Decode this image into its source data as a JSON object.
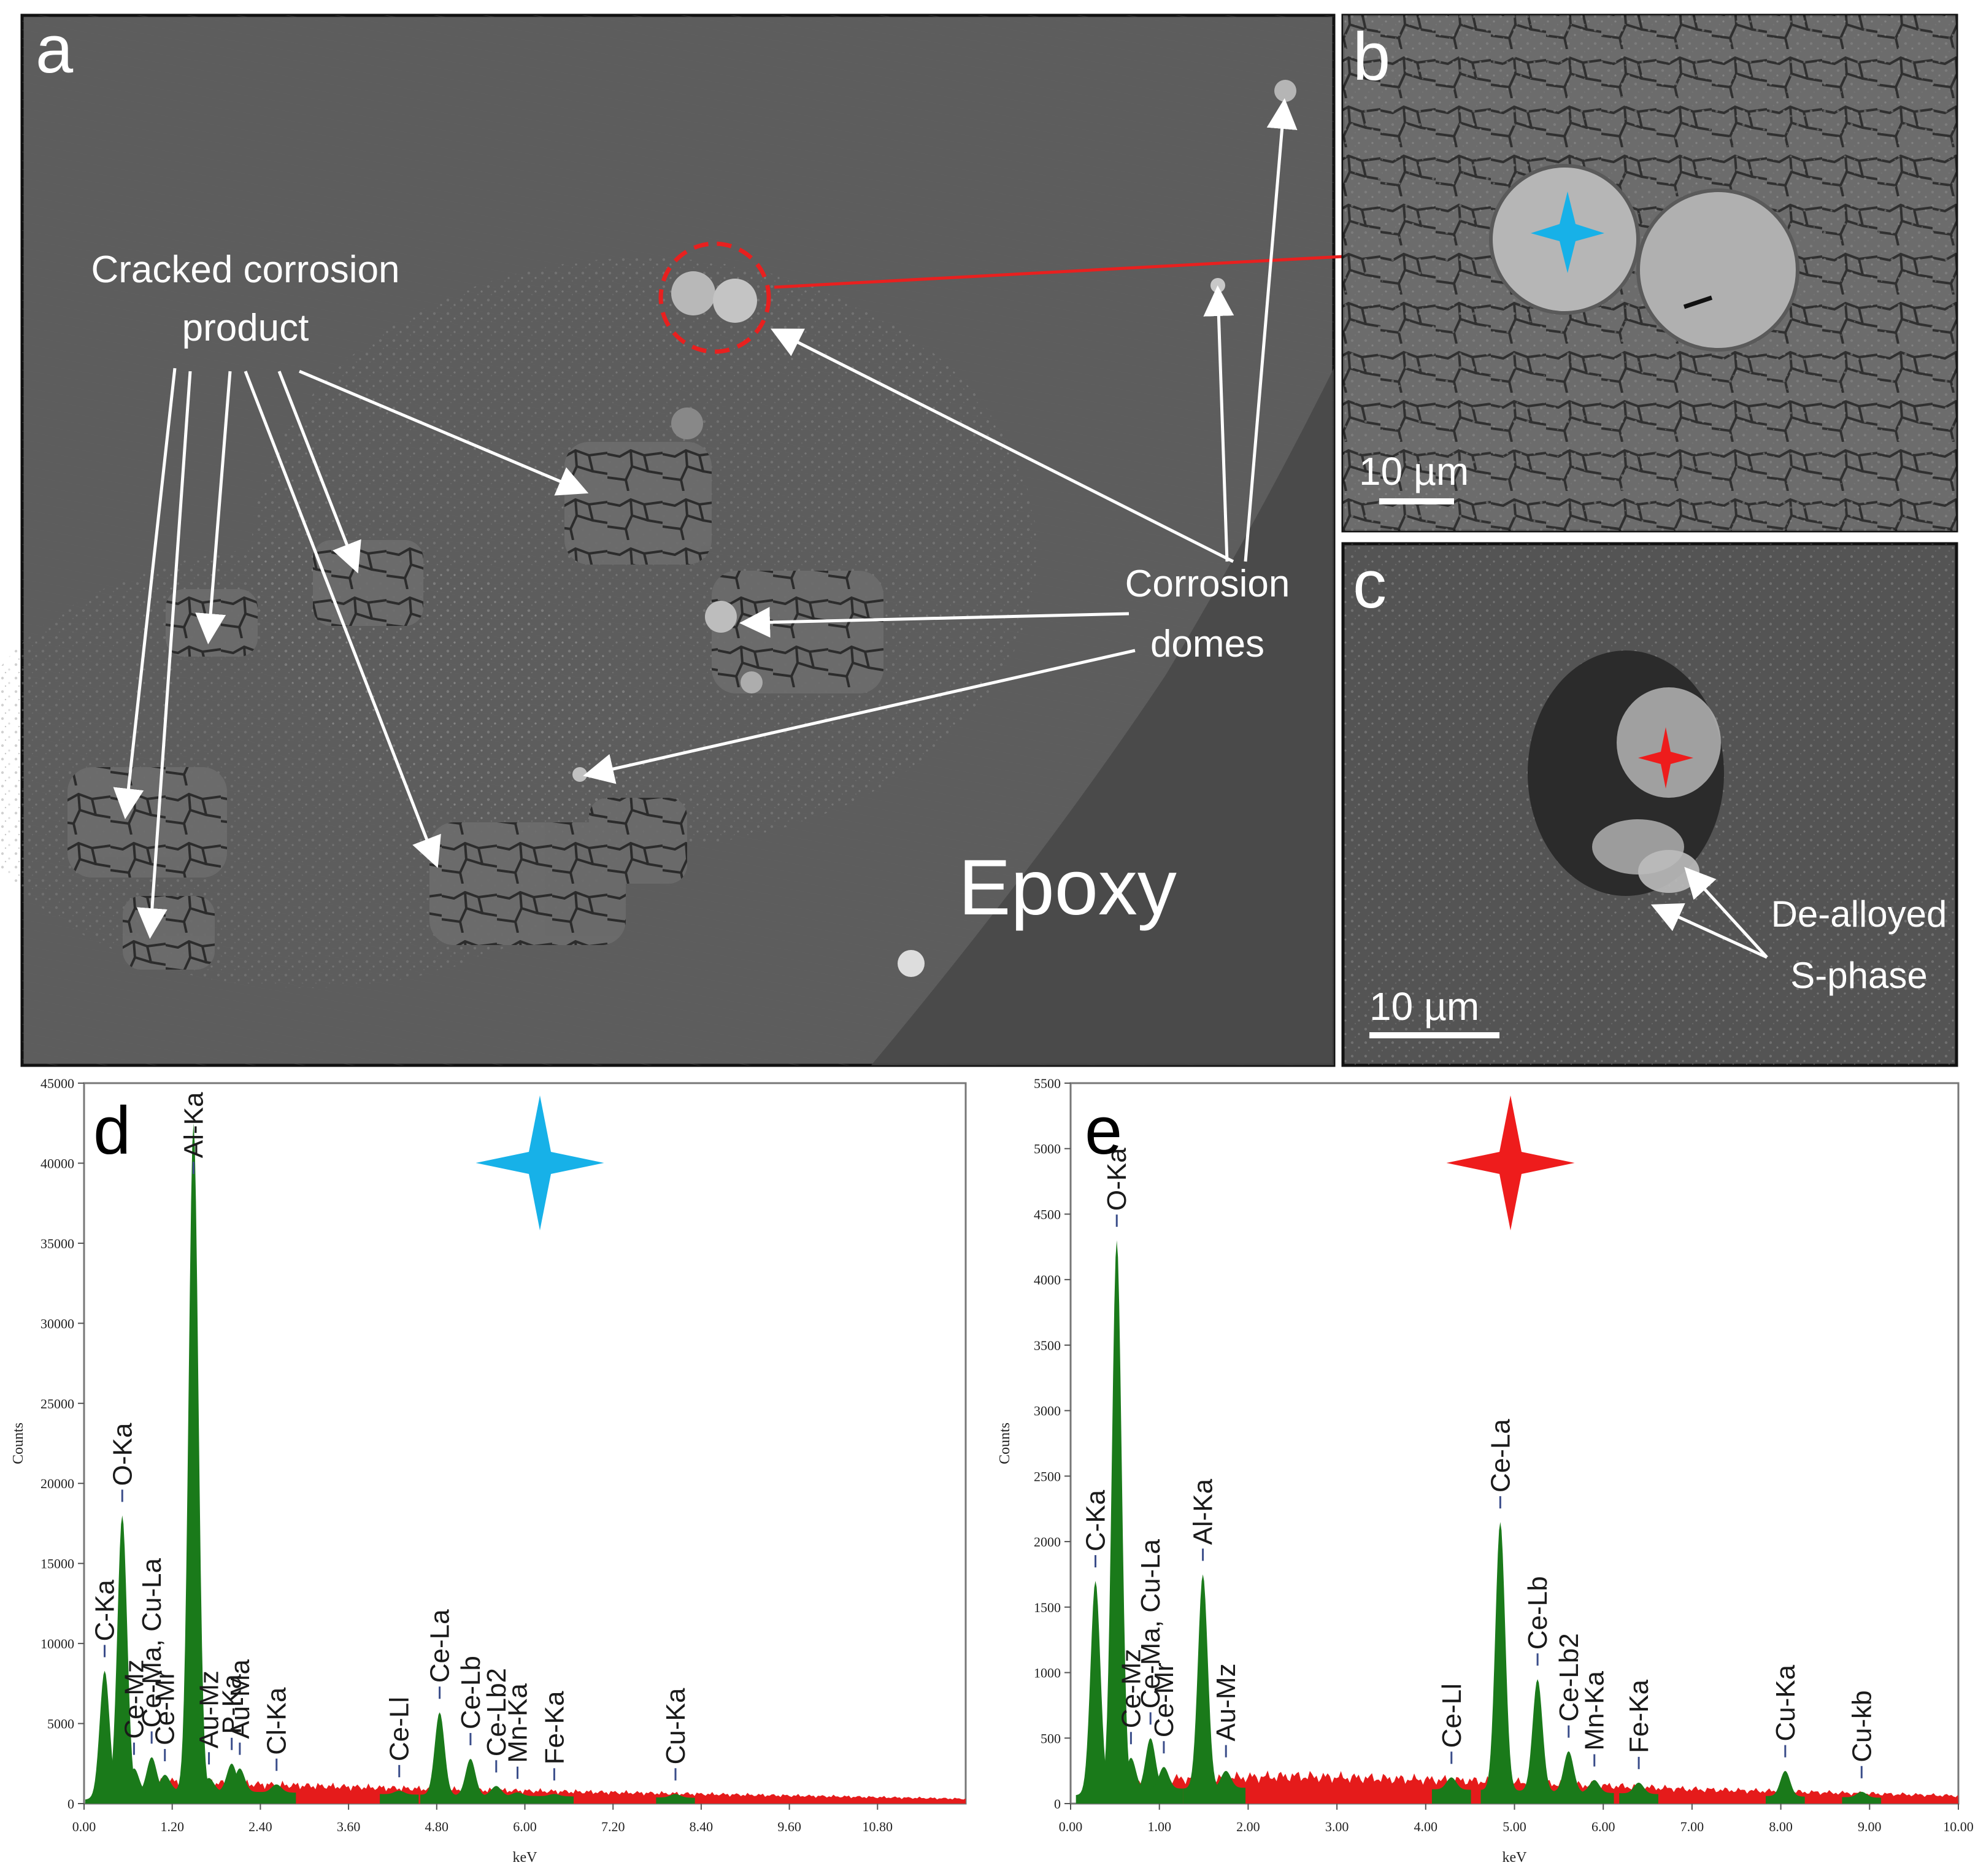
{
  "panels": {
    "a": {
      "letter": "a",
      "label_cracked": [
        "Cracked corrosion",
        "product"
      ],
      "label_domes": [
        "Corrosion",
        "domes"
      ],
      "label_epoxy": "Epoxy"
    },
    "b": {
      "letter": "b",
      "scalebar": "10 µm"
    },
    "c": {
      "letter": "c",
      "scalebar": "10 µm",
      "label_dealloyed": [
        "De-alloyed",
        "S-phase"
      ]
    }
  },
  "colors": {
    "spectrum_fill": "#1a7a1a",
    "background_fill": "#e51b1b",
    "star_blue": "#17b1e8",
    "star_red": "#ee1c1c",
    "circle_red": "#e8201f",
    "arrow_white": "#ffffff"
  },
  "chart_data": [
    {
      "panel": "d",
      "type": "area",
      "marker_star_color": "blue",
      "xlabel": "keV",
      "ylabel": "Counts",
      "xlim": [
        0,
        12
      ],
      "ylim": [
        0,
        45000
      ],
      "xticks": [
        "0.00",
        "1.20",
        "2.40",
        "3.60",
        "4.80",
        "6.00",
        "7.20",
        "8.40",
        "9.60",
        "10.80"
      ],
      "yticks": [
        "0",
        "5000",
        "10000",
        "15000",
        "20000",
        "25000",
        "30000",
        "35000",
        "40000",
        "45000"
      ],
      "background": [
        [
          0,
          400
        ],
        [
          0.5,
          1000
        ],
        [
          1.2,
          1400
        ],
        [
          2.4,
          1200
        ],
        [
          4.8,
          900
        ],
        [
          7.2,
          700
        ],
        [
          9.6,
          500
        ],
        [
          12,
          300
        ]
      ],
      "peaks": [
        {
          "label": "C-Ka",
          "x": 0.28,
          "y": 8300
        },
        {
          "label": "O-Ka",
          "x": 0.52,
          "y": 18000
        },
        {
          "label": "Ce-Mz",
          "x": 0.68,
          "y": 2200
        },
        {
          "label": "Ce-Ma, Cu-La",
          "x": 0.92,
          "y": 2900
        },
        {
          "label": "Ce-Mr",
          "x": 1.1,
          "y": 1800
        },
        {
          "label": "Al-Ka",
          "x": 1.49,
          "y": 42500
        },
        {
          "label": "Au-Mz",
          "x": 1.7,
          "y": 1600
        },
        {
          "label": "P-Ka",
          "x": 2.01,
          "y": 2500
        },
        {
          "label": "Au-Ma",
          "x": 2.12,
          "y": 2200
        },
        {
          "label": "Cl-Ka",
          "x": 2.62,
          "y": 1200
        },
        {
          "label": "Ce-Ll",
          "x": 4.29,
          "y": 800
        },
        {
          "label": "Ce-La",
          "x": 4.84,
          "y": 5700
        },
        {
          "label": "Ce-Lb",
          "x": 5.26,
          "y": 2800
        },
        {
          "label": "Ce-Lb2",
          "x": 5.61,
          "y": 1100
        },
        {
          "label": "Mn-Ka",
          "x": 5.9,
          "y": 700
        },
        {
          "label": "Fe-Ka",
          "x": 6.4,
          "y": 600
        },
        {
          "label": "Cu-Ka",
          "x": 8.05,
          "y": 600
        }
      ]
    },
    {
      "panel": "e",
      "type": "area",
      "marker_star_color": "red",
      "xlabel": "keV",
      "ylabel": "Counts",
      "xlim": [
        0,
        10
      ],
      "ylim": [
        0,
        5500
      ],
      "xticks": [
        "0.00",
        "1.00",
        "2.00",
        "3.00",
        "4.00",
        "5.00",
        "6.00",
        "7.00",
        "8.00",
        "9.00",
        "10.00"
      ],
      "yticks": [
        "0",
        "500",
        "1000",
        "1500",
        "2000",
        "2500",
        "3000",
        "3500",
        "4000",
        "4500",
        "5000",
        "5500"
      ],
      "background": [
        [
          0,
          100
        ],
        [
          0.5,
          160
        ],
        [
          1.2,
          190
        ],
        [
          2.5,
          210
        ],
        [
          4.8,
          170
        ],
        [
          7,
          110
        ],
        [
          10,
          60
        ]
      ],
      "peaks": [
        {
          "label": "C-Ka",
          "x": 0.28,
          "y": 1700
        },
        {
          "label": "O-Ka",
          "x": 0.52,
          "y": 4300
        },
        {
          "label": "Ce-Mz",
          "x": 0.68,
          "y": 350
        },
        {
          "label": "Ce-Ma, Cu-La",
          "x": 0.9,
          "y": 500
        },
        {
          "label": "Ce-Mr",
          "x": 1.05,
          "y": 280
        },
        {
          "label": "Al-Ka",
          "x": 1.49,
          "y": 1750
        },
        {
          "label": "Au-Mz",
          "x": 1.75,
          "y": 250
        },
        {
          "label": "Ce-Ll",
          "x": 4.29,
          "y": 200
        },
        {
          "label": "Ce-La",
          "x": 4.84,
          "y": 2150
        },
        {
          "label": "Ce-Lb",
          "x": 5.26,
          "y": 950
        },
        {
          "label": "Ce-Lb2",
          "x": 5.61,
          "y": 400
        },
        {
          "label": "Mn-Ka",
          "x": 5.9,
          "y": 180
        },
        {
          "label": "Fe-Ka",
          "x": 6.4,
          "y": 160
        },
        {
          "label": "Cu-Ka",
          "x": 8.05,
          "y": 250
        },
        {
          "label": "Cu-kb",
          "x": 8.91,
          "y": 90
        }
      ]
    }
  ],
  "chart_letters": [
    "d",
    "e"
  ]
}
